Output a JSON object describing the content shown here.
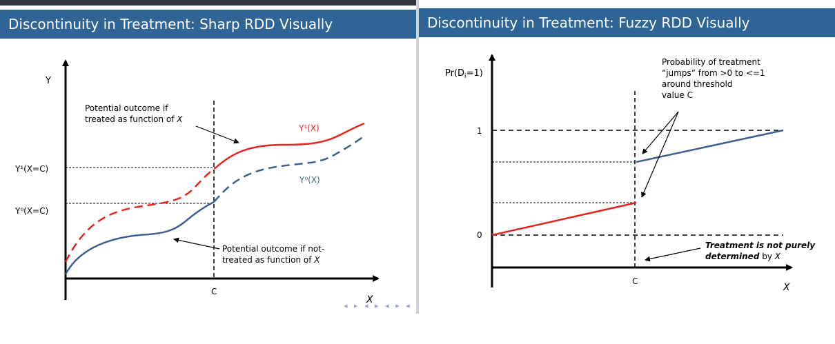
{
  "left": {
    "title": "Discontinuity in Treatment: Sharp RDD Visually",
    "y_axis_label": "Y",
    "x_axis_label": "X",
    "cutoff_label": "C",
    "y1_at_c": "Y¹(X=C)",
    "y0_at_c": "Y⁰(X=C)",
    "curve_y1_label": "Y¹(X)",
    "curve_y0_label": "Y⁰(X)",
    "ann_treated_line1": "Potential outcome if",
    "ann_treated_line2": "treated as function of ",
    "ann_treated_var": "X",
    "ann_untreated_line1": "Potential outcome if not-",
    "ann_untreated_line2": "treated as function of ",
    "ann_untreated_var": "X",
    "nav_symbols": "◂ ▸ ◂ ▸ ◂ ▸ ◂ ▸ ≡ ⟲"
  },
  "right": {
    "title": "Discontinuity in Treatment: Fuzzy RDD Visually",
    "y_axis_label_main": "Pr(D",
    "y_axis_label_sub": "i",
    "y_axis_label_end": "=1)",
    "tick_one": "1",
    "tick_zero": "0",
    "cutoff_label": "C",
    "x_axis_label": "X",
    "ann_jump_line1": "Probability of treatment",
    "ann_jump_line2": "“jumps” from >0 to <=1",
    "ann_jump_line3": "around threshold",
    "ann_jump_line4": "value C",
    "ann_not_pure_line1": "Treatment is not purely",
    "ann_not_pure_line2a": "determined",
    "ann_not_pure_line2b": " by ",
    "ann_not_pure_var": "X"
  },
  "colors": {
    "header_bg": "#2f6496",
    "treated_red": "#e8231c",
    "untreated_blue": "#3d5f8f",
    "topbar": "#33373d"
  }
}
